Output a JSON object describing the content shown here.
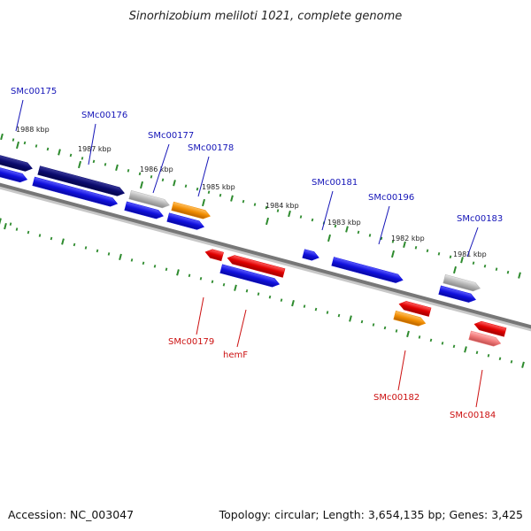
{
  "title": "Sinorhizobium meliloti 1021, complete genome",
  "footer": {
    "accession": "Accession: NC_003047",
    "summary": "Topology: circular; Length: 3,654,135 bp; Genes: 3,425"
  },
  "colors": {
    "backbone": "#777777",
    "tick_track": "#2e8b2e",
    "label_forward": "#1515b8",
    "label_reverse": "#cc1111",
    "leader_forward": "#1515b8",
    "leader_reverse": "#cc1111"
  },
  "scale_ticks": [
    {
      "label": "1988 kbp"
    },
    {
      "label": "1987 kbp"
    },
    {
      "label": "1986 kbp"
    },
    {
      "label": "1985 kbp"
    },
    {
      "label": "1984 kbp"
    },
    {
      "label": "1983 kbp"
    },
    {
      "label": "1982 kbp"
    },
    {
      "label": "1981 kbp"
    }
  ],
  "gene_labels_forward": [
    {
      "name": "SMc00175"
    },
    {
      "name": "SMc00176"
    },
    {
      "name": "SMc00177"
    },
    {
      "name": "SMc00178"
    },
    {
      "name": "SMc00181"
    },
    {
      "name": "SMc00196"
    },
    {
      "name": "SMc00183"
    }
  ],
  "gene_labels_reverse": [
    {
      "name": "SMc00179"
    },
    {
      "name": "hemF"
    },
    {
      "name": "SMc00182"
    },
    {
      "name": "SMc00184"
    }
  ],
  "feature_colors": {
    "navy": "#0a0a6e",
    "blue": "#1010dd",
    "gray": "#b4b4b4",
    "orange": "#f08c00",
    "red": "#e00000",
    "pink": "#f07878"
  }
}
